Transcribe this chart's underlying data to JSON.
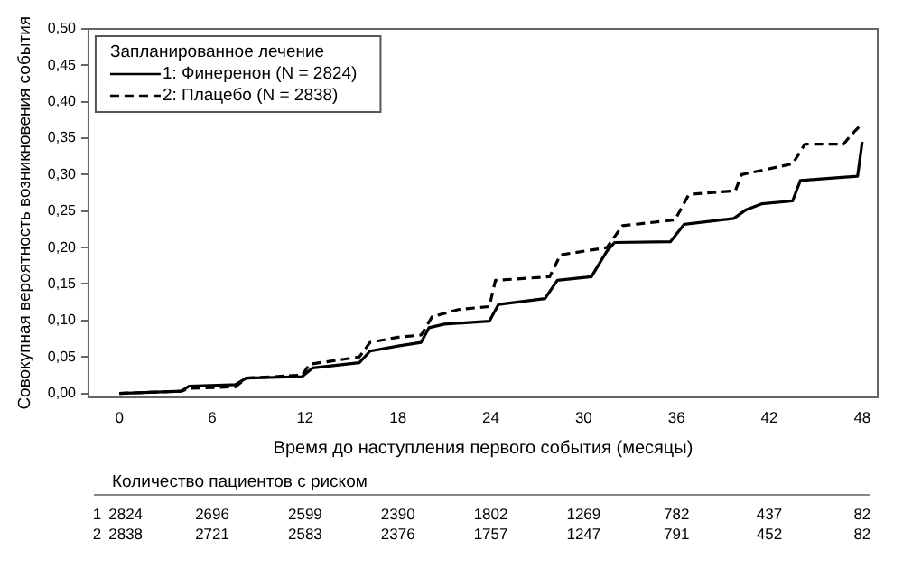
{
  "chart_data": {
    "type": "line",
    "xlabel": "Время до наступления первого события (месяцы)",
    "ylabel": "Совокупная вероятность возникновения события",
    "legend_title": "Запланированное лечение",
    "legend": "top left",
    "grid": false,
    "marker": "none",
    "xlim": [
      -2,
      49
    ],
    "xticks": [
      0,
      6,
      12,
      18,
      24,
      30,
      36,
      42,
      48
    ],
    "ylim": [
      -0.005,
      0.5
    ],
    "yticks": [
      {
        "value": 0,
        "label": "0,00"
      },
      {
        "value": 0.05,
        "label": "0,05"
      },
      {
        "value": 0.1,
        "label": "0,10"
      },
      {
        "value": 0.15,
        "label": "0,15"
      },
      {
        "value": 0.2,
        "label": "0,20"
      },
      {
        "value": 0.25,
        "label": "0,25"
      },
      {
        "value": 0.3,
        "label": "0,30"
      },
      {
        "value": 0.35,
        "label": "0,35"
      },
      {
        "value": 0.4,
        "label": "0,40"
      },
      {
        "value": 0.45,
        "label": "0,45"
      },
      {
        "value": 0.5,
        "label": "0,50"
      }
    ],
    "series": [
      {
        "name": "1: Финеренон (N = 2824)",
        "color": "#000000",
        "line_style": "solid",
        "x": [
          0,
          4,
          4.5,
          7.5,
          8.2,
          11.8,
          12.5,
          15.5,
          16.2,
          18,
          19.5,
          20,
          21,
          23.9,
          24.5,
          27.5,
          28.3,
          30.5,
          31.5,
          32,
          35.6,
          36.5,
          39.7,
          40.5,
          41.5,
          43.5,
          44,
          46.5,
          47.7,
          48
        ],
        "values": [
          0,
          0.003,
          0.01,
          0.012,
          0.021,
          0.023,
          0.035,
          0.042,
          0.058,
          0.065,
          0.07,
          0.09,
          0.095,
          0.099,
          0.122,
          0.13,
          0.155,
          0.16,
          0.195,
          0.207,
          0.208,
          0.232,
          0.24,
          0.252,
          0.26,
          0.264,
          0.292,
          0.296,
          0.298,
          0.345
        ]
      },
      {
        "name": "2: Плацебо (N = 2838)",
        "color": "#000000",
        "line_style": "dashed",
        "x": [
          0,
          4,
          4.5,
          7.5,
          8.2,
          11.8,
          12.3,
          15.5,
          16.2,
          18,
          19.5,
          20.2,
          21.9,
          23.9,
          24.3,
          27.8,
          28.5,
          31.5,
          32.5,
          35.9,
          36.8,
          39.8,
          40.2,
          43.5,
          44.3,
          46.8,
          47.3,
          48
        ],
        "values": [
          0,
          0.003,
          0.007,
          0.009,
          0.021,
          0.025,
          0.04,
          0.05,
          0.07,
          0.077,
          0.08,
          0.105,
          0.115,
          0.119,
          0.155,
          0.16,
          0.19,
          0.2,
          0.23,
          0.238,
          0.273,
          0.278,
          0.3,
          0.315,
          0.342,
          0.342,
          0.355,
          0.37
        ]
      }
    ],
    "annotations": [
      "Количество пациентов с риском",
      "1 2824 2696 2599 2390 1802 1269 782 437 82",
      "2 2838 2721 2583 2376 1757 1247 791 452 82"
    ]
  }
}
